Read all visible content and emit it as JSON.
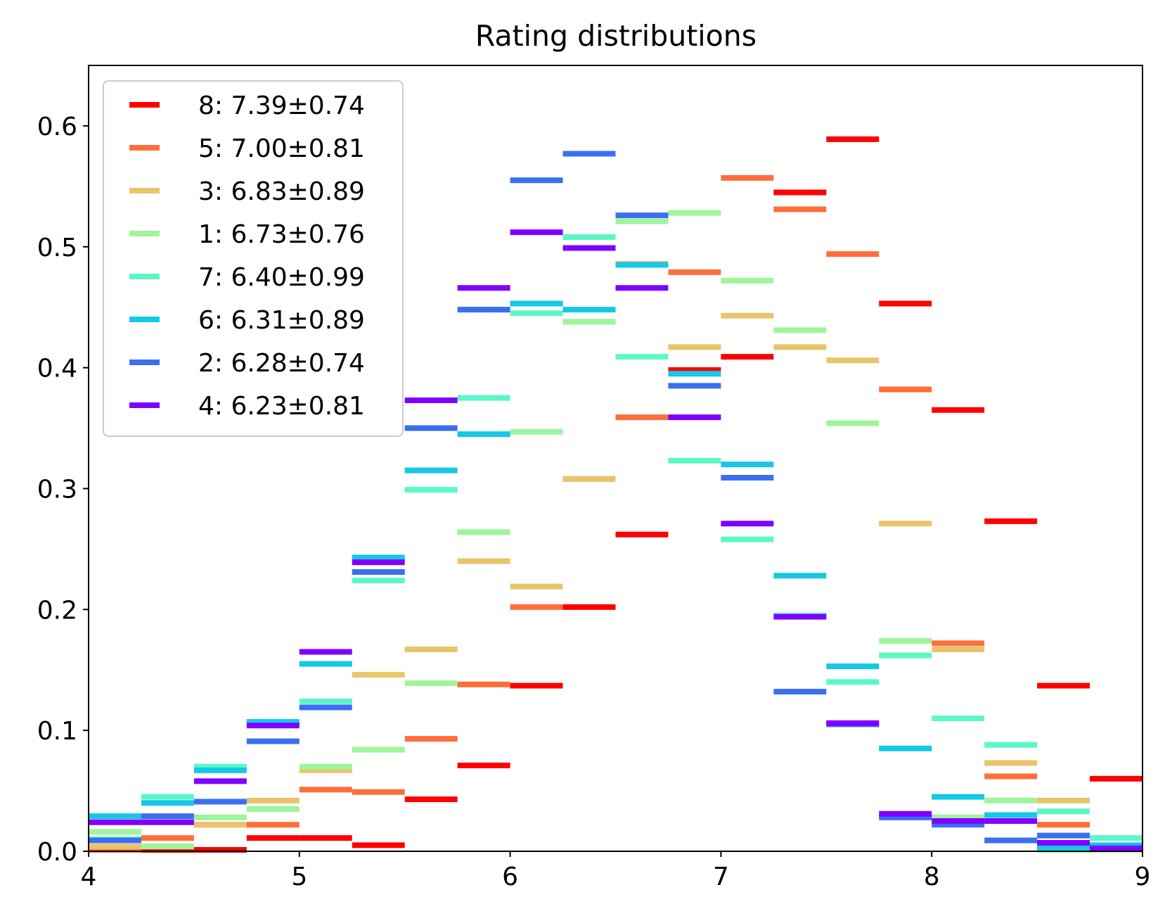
{
  "chart_data": {
    "type": "histogram-step",
    "title": "Rating distributions",
    "xlabel": "",
    "ylabel": "",
    "xlim": [
      4,
      9
    ],
    "ylim": [
      0,
      0.65
    ],
    "xticks": [
      "4",
      "5",
      "6",
      "7",
      "8",
      "9"
    ],
    "yticks": [
      "0.0",
      "0.1",
      "0.2",
      "0.3",
      "0.4",
      "0.5",
      "0.6"
    ],
    "bin_edges": [
      4.0,
      4.25,
      4.5,
      4.75,
      5.0,
      5.25,
      5.5,
      5.75,
      6.0,
      6.25,
      6.5,
      6.75,
      7.0,
      7.25,
      7.5,
      7.75,
      8.0,
      8.25,
      8.5,
      8.75,
      9.0
    ],
    "legend_position": "upper-left",
    "grid": false,
    "series": [
      {
        "name": "8: 7.39±0.74",
        "color": "#ff0000",
        "values": [
          0.0,
          0.0,
          0.0,
          0.011,
          0.011,
          0.005,
          0.043,
          0.071,
          0.137,
          0.202,
          0.262,
          0.398,
          0.409,
          0.545,
          0.589,
          0.453,
          0.365,
          0.273,
          0.137,
          0.06
        ]
      },
      {
        "name": "5: 7.00±0.81",
        "color": "#ff6e3a",
        "values": [
          0.0,
          0.011,
          0.022,
          0.022,
          0.051,
          0.049,
          0.093,
          0.138,
          0.202,
          0.308,
          0.359,
          0.479,
          0.557,
          0.531,
          0.494,
          0.382,
          0.172,
          0.062,
          0.022,
          0.0
        ]
      },
      {
        "name": "3: 6.83±0.89",
        "color": "#e9c46a",
        "values": [
          0.004,
          0.004,
          0.022,
          0.042,
          0.067,
          0.146,
          0.167,
          0.24,
          0.219,
          0.308,
          0.486,
          0.417,
          0.443,
          0.417,
          0.406,
          0.271,
          0.167,
          0.073,
          0.042,
          0.0
        ]
      },
      {
        "name": "1: 6.73±0.76",
        "color": "#9ef59a",
        "values": [
          0.016,
          0.004,
          0.028,
          0.035,
          0.07,
          0.084,
          0.139,
          0.264,
          0.347,
          0.438,
          0.521,
          0.528,
          0.472,
          0.431,
          0.354,
          0.174,
          0.028,
          0.042,
          0.0,
          0.0
        ]
      },
      {
        "name": "7: 6.40±0.99",
        "color": "#5cf7c8",
        "values": [
          0.01,
          0.045,
          0.07,
          0.107,
          0.124,
          0.224,
          0.299,
          0.375,
          0.445,
          0.508,
          0.409,
          0.323,
          0.258,
          0.195,
          0.14,
          0.162,
          0.11,
          0.088,
          0.033,
          0.011
        ]
      },
      {
        "name": "6: 6.31±0.89",
        "color": "#14c8e6",
        "values": [
          0.029,
          0.04,
          0.067,
          0.107,
          0.155,
          0.243,
          0.315,
          0.345,
          0.453,
          0.448,
          0.485,
          0.395,
          0.32,
          0.228,
          0.153,
          0.085,
          0.045,
          0.03,
          0.003,
          0.005
        ]
      },
      {
        "name": "2: 6.28±0.74",
        "color": "#3a6ff0",
        "values": [
          0.009,
          0.029,
          0.041,
          0.091,
          0.119,
          0.231,
          0.35,
          0.448,
          0.555,
          0.577,
          0.526,
          0.385,
          0.309,
          0.132,
          0.105,
          0.028,
          0.022,
          0.009,
          0.013,
          0.003
        ]
      },
      {
        "name": "4: 6.23±0.81",
        "color": "#7f00ff",
        "values": [
          0.024,
          0.024,
          0.058,
          0.104,
          0.165,
          0.239,
          0.373,
          0.466,
          0.512,
          0.499,
          0.466,
          0.359,
          0.271,
          0.194,
          0.106,
          0.031,
          0.025,
          0.025,
          0.007,
          0.002
        ]
      }
    ]
  }
}
